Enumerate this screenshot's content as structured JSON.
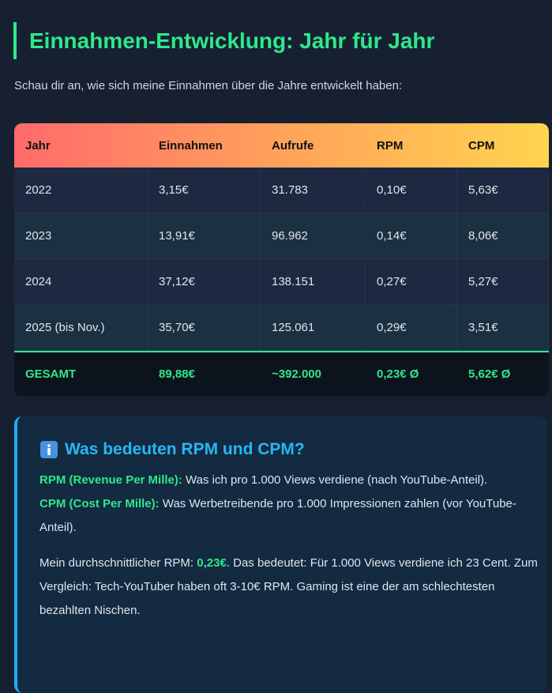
{
  "heading": "Einnahmen-Entwicklung: Jahr für Jahr",
  "intro": "Schau dir an, wie sich meine Einnahmen über die Jahre entwickelt haben:",
  "table": {
    "header": [
      "Jahr",
      "Einnahmen",
      "Aufrufe",
      "RPM",
      "CPM"
    ],
    "rows": [
      [
        "2022",
        "3,15€",
        "31.783",
        "0,10€",
        "5,63€"
      ],
      [
        "2023",
        "13,91€",
        "96.962",
        "0,14€",
        "8,06€"
      ],
      [
        "2024",
        "37,12€",
        "138.151",
        "0,27€",
        "5,27€"
      ],
      [
        "2025 (bis Nov.)",
        "35,70€",
        "125.061",
        "0,29€",
        "3,51€"
      ]
    ],
    "total": [
      "GESAMT",
      "89,88€",
      "~392.000",
      "0,23€ Ø",
      "5,62€ Ø"
    ]
  },
  "info": {
    "title": "Was bedeuten RPM und CPM?",
    "rpm_label": "RPM (Revenue Per Mille):",
    "rpm_text": "Was ich pro 1.000 Views verdiene (nach YouTube-Anteil).",
    "cpm_label": "CPM (Cost Per Mille):",
    "cpm_text": "Was Werbetreibende pro 1.000 Impressionen zahlen (vor YouTube-Anteil).",
    "avg_before": "Mein durchschnittlicher RPM:",
    "avg_value": "0,23€",
    "avg_after": ". Das bedeutet: Für 1.000 Views verdiene ich 23 Cent. Zum Vergleich: Tech-YouTuber haben oft 3-10€ RPM. Gaming ist eine der am schlechtesten bezahlten Nischen."
  }
}
